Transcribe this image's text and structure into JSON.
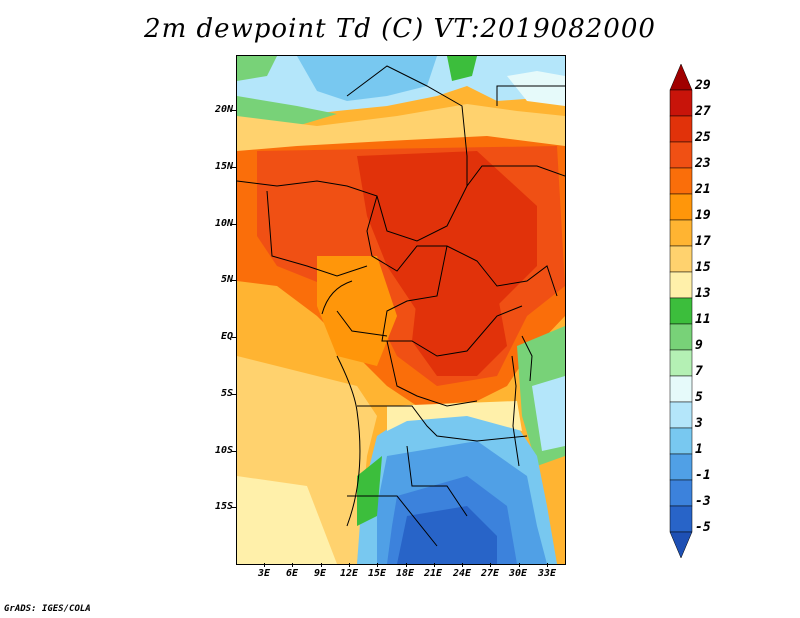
{
  "title": "2m dewpoint Td (C) VT:2019082000",
  "footer": "GrADS: IGES/COLA",
  "map": {
    "lat_labels": [
      "20N",
      "15N",
      "10N",
      "5N",
      "EQ",
      "5S",
      "10S",
      "15S"
    ],
    "lon_labels": [
      "3E",
      "6E",
      "9E",
      "12E",
      "15E",
      "18E",
      "21E",
      "24E",
      "27E",
      "30E",
      "33E"
    ]
  },
  "colorbar": {
    "labels": [
      "29",
      "27",
      "25",
      "23",
      "21",
      "19",
      "17",
      "15",
      "13",
      "11",
      "9",
      "7",
      "5",
      "3",
      "1",
      "-1",
      "-3",
      "-5"
    ],
    "colors": [
      "#a00000",
      "#c8140a",
      "#e1320a",
      "#f05014",
      "#fa6e0a",
      "#ff960a",
      "#ffb432",
      "#ffd26e",
      "#fff0aa",
      "#3cbe3c",
      "#78d278",
      "#b4f0b4",
      "#e6fafa",
      "#b4e6fa",
      "#78c8f0",
      "#50a0e6",
      "#3c82dc",
      "#2864c8",
      "#1e50b4"
    ]
  }
}
